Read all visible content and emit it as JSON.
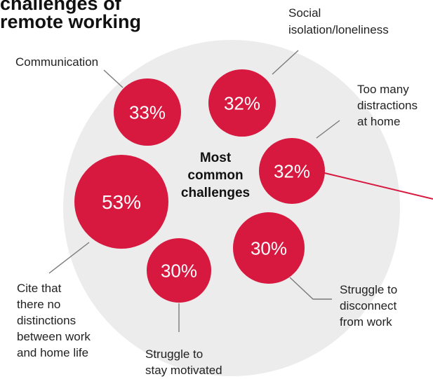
{
  "chart_data": {
    "type": "bubble",
    "title_lines": [
      "challenges of",
      "remote working"
    ],
    "center_label_lines": [
      "Most",
      "common",
      "challenges"
    ],
    "colors": {
      "bubble": "#d7193f",
      "background_circle": "#ececec",
      "accent_line": "#d7193f",
      "leader_line": "#7a7a7a",
      "label_text": "#222222",
      "bubble_text": "#ffffff"
    },
    "items": [
      {
        "value": 33,
        "display": "33%",
        "label_lines": [
          "Communication"
        ]
      },
      {
        "value": 32,
        "display": "32%",
        "label_lines": [
          "Social",
          "isolation/loneliness"
        ]
      },
      {
        "value": 32,
        "display": "32%",
        "label_lines": [
          "Too many",
          "distractions",
          "at home"
        ]
      },
      {
        "value": 30,
        "display": "30%",
        "label_lines": [
          "Struggle to",
          "disconnect",
          "from work"
        ]
      },
      {
        "value": 30,
        "display": "30%",
        "label_lines": [
          "Struggle to",
          "stay motivated"
        ]
      },
      {
        "value": 53,
        "display": "53%",
        "label_lines": [
          "Cite that",
          "there no",
          "distinctions",
          "between work",
          "and home life"
        ]
      }
    ]
  }
}
